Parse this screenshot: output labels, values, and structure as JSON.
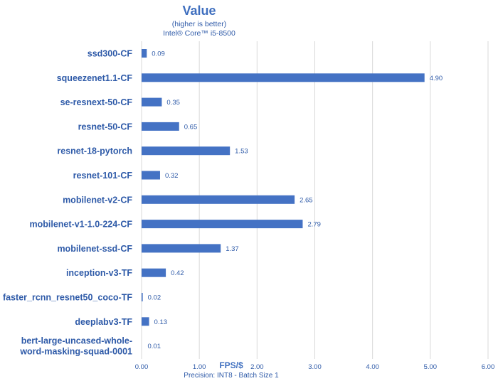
{
  "chart_data": {
    "type": "bar",
    "orientation": "horizontal",
    "title": "Value",
    "subtitle_lines": [
      "(higher is better)",
      "Intel® Core™ i5-8500"
    ],
    "xlabel": "FPS/$",
    "footnote": "Precision: INT8 - Batch Size 1",
    "categories": [
      [
        "ssd300-CF"
      ],
      [
        "squeezenet1.1-CF"
      ],
      [
        "se-resnext-50-CF"
      ],
      [
        "resnet-50-CF"
      ],
      [
        "resnet-18-pytorch"
      ],
      [
        "resnet-101-CF"
      ],
      [
        "mobilenet-v2-CF"
      ],
      [
        "mobilenet-v1-1.0-224-CF"
      ],
      [
        "mobilenet-ssd-CF"
      ],
      [
        "inception-v3-TF"
      ],
      [
        "faster_rcnn_resnet50_coco-TF"
      ],
      [
        "deeplabv3-TF"
      ],
      [
        "bert-large-uncased-whole-",
        "word-masking-squad-0001"
      ]
    ],
    "values": [
      0.09,
      4.9,
      0.35,
      0.65,
      1.53,
      0.32,
      2.65,
      2.79,
      1.37,
      0.42,
      0.02,
      0.13,
      0.01
    ],
    "value_labels": [
      "0.09",
      "4.90",
      "0.35",
      "0.65",
      "1.53",
      "0.32",
      "2.65",
      "2.79",
      "1.37",
      "0.42",
      "0.02",
      "0.13",
      "0.01"
    ],
    "xlim": [
      0,
      6
    ],
    "xticks": [
      0,
      1,
      2,
      3,
      4,
      5,
      6
    ],
    "xtick_labels": [
      "0.00",
      "1.00",
      "2.00",
      "3.00",
      "4.00",
      "5.00",
      "6.00"
    ],
    "grid": true,
    "legend": "none",
    "bar_color": "#4472c4",
    "text_color": "#2e5aa8"
  }
}
